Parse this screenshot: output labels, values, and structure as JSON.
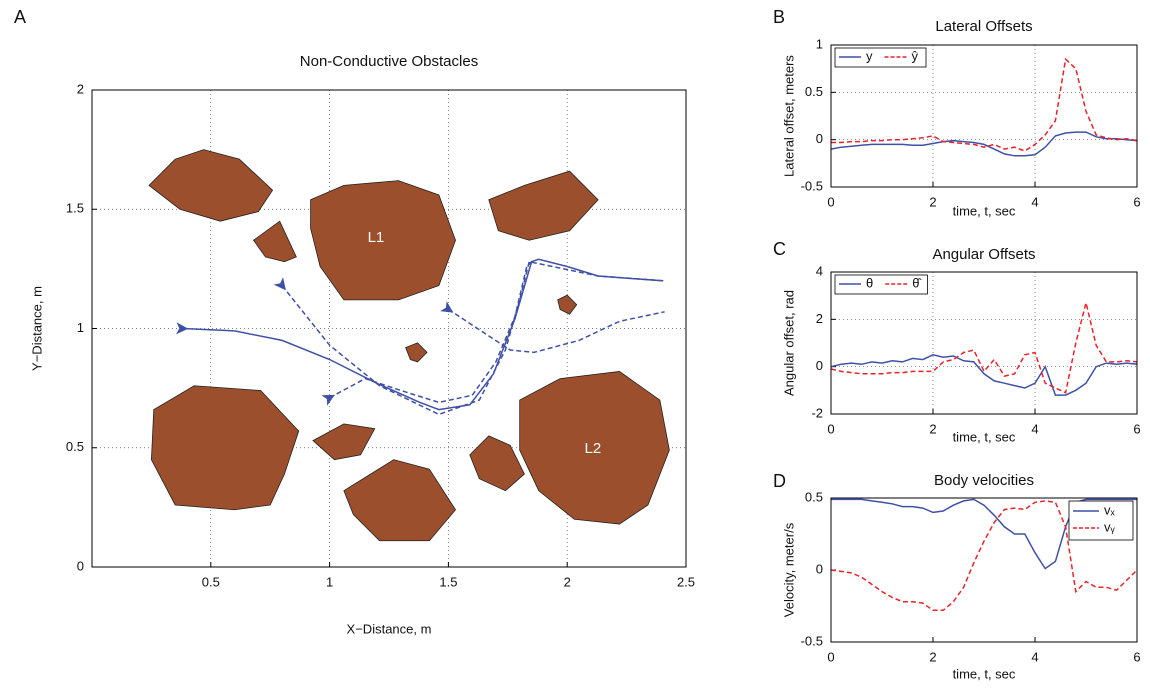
{
  "chart_data": [
    {
      "type": "line",
      "panel_label": "A",
      "title": "Non-Conductive Obstacles",
      "xlabel": "X−Distance, m",
      "ylabel": "Y−Distance, m",
      "xlim": [
        0,
        2.5
      ],
      "xticks": [
        0.5,
        1,
        1.5,
        2,
        2.5
      ],
      "ylim": [
        0,
        2
      ],
      "yticks": [
        0,
        0.5,
        1,
        1.5,
        2
      ],
      "grid": true,
      "start_arrows": true,
      "obstacle_color": "#9c4f2c",
      "obstacles": [
        {
          "x": [
            0.24,
            0.35,
            0.47,
            0.62,
            0.76,
            0.7,
            0.54,
            0.37
          ],
          "y": [
            1.6,
            1.71,
            1.75,
            1.71,
            1.58,
            1.49,
            1.45,
            1.5
          ]
        },
        {
          "x": [
            0.68,
            0.79,
            0.86,
            0.81,
            0.73
          ],
          "y": [
            1.37,
            1.45,
            1.3,
            1.28,
            1.3
          ]
        },
        {
          "label": "L1",
          "x": [
            0.92,
            1.06,
            1.29,
            1.46,
            1.53,
            1.46,
            1.29,
            1.06,
            0.96,
            0.92
          ],
          "y": [
            1.54,
            1.6,
            1.62,
            1.56,
            1.37,
            1.18,
            1.12,
            1.12,
            1.26,
            1.42
          ]
        },
        {
          "x": [
            1.67,
            1.82,
            2.01,
            2.13,
            2.01,
            1.84,
            1.71
          ],
          "y": [
            1.54,
            1.6,
            1.66,
            1.54,
            1.41,
            1.37,
            1.41
          ]
        },
        {
          "x": [
            1.96,
            2.0,
            2.04,
            2.01,
            1.97
          ],
          "y": [
            1.12,
            1.14,
            1.1,
            1.06,
            1.08
          ]
        },
        {
          "x": [
            1.32,
            1.37,
            1.41,
            1.37,
            1.34
          ],
          "y": [
            0.92,
            0.94,
            0.9,
            0.86,
            0.87
          ]
        },
        {
          "x": [
            0.26,
            0.43,
            0.71,
            0.87,
            0.81,
            0.75,
            0.6,
            0.35,
            0.25
          ],
          "y": [
            0.66,
            0.76,
            0.74,
            0.57,
            0.39,
            0.26,
            0.24,
            0.26,
            0.45
          ]
        },
        {
          "x": [
            0.93,
            1.06,
            1.19,
            1.13,
            1.02
          ],
          "y": [
            0.53,
            0.6,
            0.58,
            0.47,
            0.45
          ]
        },
        {
          "x": [
            1.06,
            1.27,
            1.42,
            1.53,
            1.42,
            1.21,
            1.1
          ],
          "y": [
            0.32,
            0.45,
            0.41,
            0.24,
            0.11,
            0.11,
            0.22
          ]
        },
        {
          "x": [
            1.59,
            1.67,
            1.76,
            1.82,
            1.74,
            1.63
          ],
          "y": [
            0.47,
            0.55,
            0.51,
            0.39,
            0.32,
            0.37
          ]
        },
        {
          "label": "L2",
          "x": [
            1.8,
            1.97,
            2.22,
            2.39,
            2.43,
            2.34,
            2.22,
            2.03,
            1.88,
            1.8
          ],
          "y": [
            0.7,
            0.79,
            0.82,
            0.7,
            0.49,
            0.26,
            0.18,
            0.2,
            0.32,
            0.49
          ]
        }
      ],
      "series": [
        {
          "color": "#3f51a6",
          "style": "solid",
          "x": [
            0.38,
            0.6,
            0.8,
            1.0,
            1.2,
            1.38,
            1.46,
            1.59,
            1.69,
            1.78,
            1.85,
            1.88,
            2.0,
            2.13,
            2.4
          ],
          "values": [
            1.0,
            0.99,
            0.95,
            0.87,
            0.77,
            0.69,
            0.66,
            0.68,
            0.81,
            1.04,
            1.28,
            1.29,
            1.26,
            1.22,
            1.2
          ]
        },
        {
          "color": "#3f51a6",
          "style": "dashed",
          "x": [
            0.8,
            1.0,
            1.21,
            1.46,
            1.63,
            1.74,
            1.8,
            1.84,
            2.13,
            2.41
          ],
          "values": [
            1.18,
            0.93,
            0.76,
            0.64,
            0.7,
            0.91,
            1.12,
            1.28,
            1.22,
            1.2
          ]
        },
        {
          "color": "#3f51a6",
          "style": "dashed",
          "x": [
            1.5,
            1.76,
            1.86,
            2.05,
            2.22,
            2.41
          ],
          "values": [
            1.08,
            0.91,
            0.9,
            0.95,
            1.03,
            1.07
          ]
        },
        {
          "color": "#3f51a6",
          "style": "dashed",
          "x": [
            1.0,
            1.15,
            1.3,
            1.46,
            1.6,
            1.7,
            1.78,
            1.83,
            1.86
          ],
          "values": [
            0.71,
            0.79,
            0.74,
            0.69,
            0.72,
            0.86,
            1.05,
            1.26,
            1.29
          ]
        }
      ]
    },
    {
      "type": "line",
      "panel_label": "B",
      "title": "Lateral Offsets",
      "xlabel": "time, t, sec",
      "ylabel": "Lateral offset, meters",
      "xlim": [
        0,
        6
      ],
      "xticks": [
        0,
        2,
        4,
        6
      ],
      "ylim": [
        -0.5,
        1
      ],
      "yticks": [
        -0.5,
        0,
        0.5,
        1
      ],
      "grid": true,
      "legend": "upper left",
      "x": [
        0,
        0.2,
        0.4,
        0.6,
        0.8,
        1.0,
        1.2,
        1.4,
        1.6,
        1.8,
        2.0,
        2.2,
        2.4,
        2.6,
        2.8,
        3.0,
        3.2,
        3.4,
        3.6,
        3.8,
        4.0,
        4.2,
        4.4,
        4.6,
        4.8,
        5.0,
        5.2,
        5.4,
        5.6,
        5.8,
        6.0
      ],
      "series": [
        {
          "name": "y",
          "color": "#3f51a6",
          "style": "solid",
          "values": [
            -0.1,
            -0.08,
            -0.07,
            -0.06,
            -0.05,
            -0.05,
            -0.05,
            -0.05,
            -0.06,
            -0.06,
            -0.04,
            -0.02,
            -0.01,
            -0.02,
            -0.03,
            -0.05,
            -0.1,
            -0.15,
            -0.17,
            -0.17,
            -0.16,
            -0.08,
            0.04,
            0.07,
            0.08,
            0.08,
            0.03,
            0.01,
            0.01,
            0,
            -0.01
          ]
        },
        {
          "name": "ŷ",
          "color": "#e8232a",
          "style": "dashed",
          "values": [
            -0.03,
            -0.03,
            -0.02,
            -0.02,
            -0.01,
            -0.01,
            0,
            0,
            0.01,
            0.02,
            0.04,
            -0.02,
            -0.03,
            -0.04,
            -0.05,
            -0.08,
            -0.05,
            -0.1,
            -0.08,
            -0.12,
            -0.05,
            0.05,
            0.2,
            0.85,
            0.75,
            0.3,
            0.05,
            0.02,
            0,
            0.01,
            -0.01
          ]
        }
      ]
    },
    {
      "type": "line",
      "panel_label": "C",
      "title": "Angular Offsets",
      "xlabel": "time, t, sec",
      "ylabel": "Angular offset, rad",
      "xlim": [
        0,
        6
      ],
      "xticks": [
        0,
        2,
        4,
        6
      ],
      "ylim": [
        -2,
        4
      ],
      "yticks": [
        -2,
        0,
        2,
        4
      ],
      "grid": true,
      "legend": "upper left",
      "x": [
        0,
        0.2,
        0.4,
        0.6,
        0.8,
        1.0,
        1.2,
        1.4,
        1.6,
        1.8,
        2.0,
        2.2,
        2.4,
        2.6,
        2.8,
        3.0,
        3.2,
        3.4,
        3.6,
        3.8,
        4.0,
        4.2,
        4.4,
        4.6,
        4.8,
        5.0,
        5.2,
        5.4,
        5.6,
        5.8,
        6.0
      ],
      "series": [
        {
          "name": "θ",
          "color": "#3f51a6",
          "style": "solid",
          "values": [
            0,
            0.1,
            0.15,
            0.1,
            0.2,
            0.15,
            0.25,
            0.2,
            0.35,
            0.3,
            0.5,
            0.4,
            0.45,
            0.25,
            0.2,
            -0.3,
            -0.6,
            -0.7,
            -0.8,
            -0.9,
            -0.7,
            0.0,
            -1.2,
            -1.2,
            -1.0,
            -0.7,
            0.0,
            0.15,
            0.1,
            0.15,
            0.1
          ]
        },
        {
          "name": "θ̂",
          "color": "#e8232a",
          "style": "dashed",
          "values": [
            -0.1,
            -0.2,
            -0.25,
            -0.3,
            -0.3,
            -0.3,
            -0.25,
            -0.25,
            -0.2,
            -0.2,
            -0.2,
            0.2,
            0.3,
            0.6,
            0.7,
            -0.2,
            0.3,
            -0.4,
            -0.3,
            0.5,
            0.6,
            -0.7,
            -0.9,
            -1.1,
            1.0,
            2.7,
            0.9,
            0.2,
            0.2,
            0.25,
            0.2
          ]
        }
      ]
    },
    {
      "type": "line",
      "panel_label": "D",
      "title": "Body velocities",
      "xlabel": "time, t, sec",
      "ylabel": "Velocity, meter/s",
      "xlim": [
        0,
        6
      ],
      "xticks": [
        0,
        2,
        4,
        6
      ],
      "ylim": [
        -0.5,
        0.5
      ],
      "yticks": [
        -0.5,
        0,
        0.5
      ],
      "grid": false,
      "legend": "upper right",
      "x": [
        0,
        0.2,
        0.4,
        0.6,
        0.8,
        1.0,
        1.2,
        1.4,
        1.6,
        1.8,
        2.0,
        2.2,
        2.4,
        2.6,
        2.8,
        3.0,
        3.2,
        3.4,
        3.6,
        3.8,
        4.0,
        4.2,
        4.4,
        4.6,
        4.8,
        5.0,
        5.2,
        5.4,
        5.6,
        5.8,
        6.0
      ],
      "series": [
        {
          "name": "vₓ",
          "color": "#3f51a6",
          "style": "solid",
          "values": [
            0.49,
            0.49,
            0.49,
            0.49,
            0.48,
            0.47,
            0.46,
            0.44,
            0.44,
            0.43,
            0.4,
            0.41,
            0.45,
            0.48,
            0.49,
            0.45,
            0.38,
            0.3,
            0.25,
            0.25,
            0.12,
            0.01,
            0.06,
            0.3,
            0.47,
            0.49,
            0.49,
            0.49,
            0.49,
            0.49,
            0.49
          ]
        },
        {
          "name": "vᵧ",
          "color": "#e8232a",
          "style": "dashed",
          "values": [
            0,
            -0.01,
            -0.02,
            -0.05,
            -0.1,
            -0.15,
            -0.19,
            -0.22,
            -0.22,
            -0.23,
            -0.28,
            -0.28,
            -0.22,
            -0.12,
            0.05,
            0.2,
            0.33,
            0.42,
            0.43,
            0.42,
            0.47,
            0.48,
            0.47,
            0.3,
            -0.15,
            -0.08,
            -0.12,
            -0.12,
            -0.14,
            -0.07,
            0
          ]
        }
      ]
    }
  ]
}
